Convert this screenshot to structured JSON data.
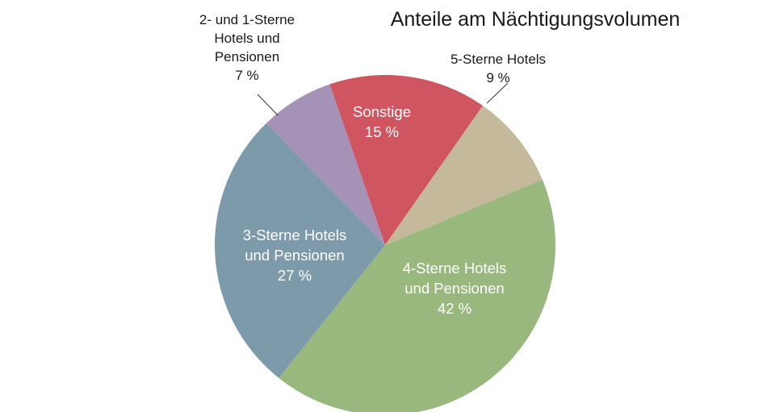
{
  "chart_data": {
    "type": "pie",
    "title": "Anteile am Nächtigungsvolumen",
    "slices": [
      {
        "lines": [
          "Sonstige",
          "15 %"
        ],
        "value": 15,
        "color": "#cf5560",
        "label_inside": true
      },
      {
        "lines": [
          "5-Sterne Hotels",
          "9 %"
        ],
        "value": 9,
        "color": "#c4b99a",
        "label_inside": false
      },
      {
        "lines": [
          "4-Sterne Hotels",
          "und Pensionen",
          "42 %"
        ],
        "value": 42,
        "color": "#99b87d",
        "label_inside": true
      },
      {
        "lines": [
          "3-Sterne Hotels",
          "und Pensionen",
          "27 %"
        ],
        "value": 27,
        "color": "#7d9aab",
        "label_inside": true
      },
      {
        "lines": [
          "2- und 1-Sterne",
          "Hotels und",
          "Pensionen",
          "7 %"
        ],
        "value": 7,
        "color": "#a493b6",
        "label_inside": false
      }
    ],
    "legend": "none",
    "grid": false
  }
}
